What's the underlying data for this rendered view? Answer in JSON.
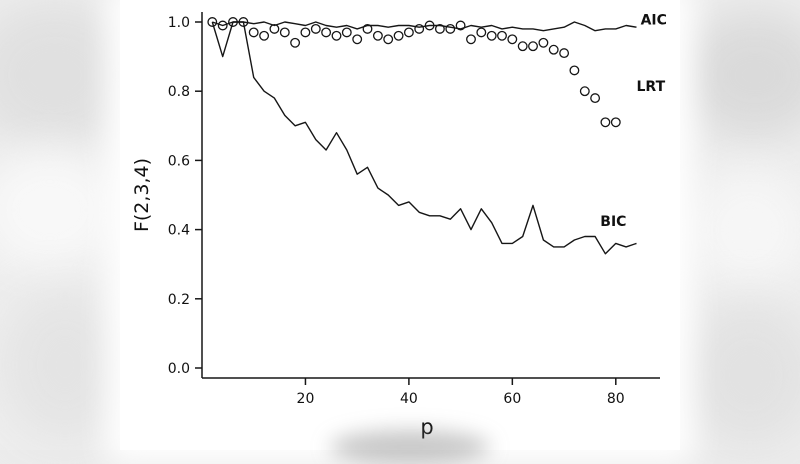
{
  "figure": {
    "background_color": "#ffffff",
    "line_color": "#161616"
  },
  "chart_data": {
    "type": "line",
    "title": "",
    "xlabel": "p",
    "ylabel": "F(2,3,4)",
    "xlim": [
      0,
      87
    ],
    "ylim": [
      0.0,
      1.0
    ],
    "grid": false,
    "legend_position": "inline-right-labels",
    "x_tick_values": [
      20,
      40,
      60,
      80
    ],
    "x_tick_labels": [
      "20",
      "40",
      "60",
      "80"
    ],
    "y_tick_values": [
      0.0,
      0.2,
      0.4,
      0.6,
      0.8,
      1.0
    ],
    "y_tick_labels": [
      "0.0",
      "0.2",
      "0.4",
      "0.6",
      "0.8",
      "1.0"
    ],
    "x": [
      2,
      4,
      6,
      8,
      10,
      12,
      14,
      16,
      18,
      20,
      22,
      24,
      26,
      28,
      30,
      32,
      34,
      36,
      38,
      40,
      42,
      44,
      46,
      48,
      50,
      52,
      54,
      56,
      58,
      60,
      62,
      64,
      66,
      68,
      70,
      72,
      74,
      76,
      78,
      80,
      82,
      84
    ],
    "series": [
      {
        "name": "AIC",
        "style": "line",
        "values": [
          1.0,
          0.99,
          1.0,
          1.0,
          0.995,
          1.0,
          0.99,
          1.0,
          0.995,
          0.99,
          1.0,
          0.99,
          0.985,
          0.99,
          0.98,
          0.99,
          0.99,
          0.985,
          0.99,
          0.99,
          0.985,
          0.99,
          0.99,
          0.985,
          0.98,
          0.99,
          0.985,
          0.99,
          0.98,
          0.985,
          0.98,
          0.98,
          0.975,
          0.98,
          0.985,
          1.0,
          0.99,
          0.975,
          0.98,
          0.98,
          0.99,
          0.985
        ],
        "label": {
          "text": "AIC",
          "x": 84.8,
          "y": 0.993
        }
      },
      {
        "name": "LRT",
        "style": "points",
        "values": [
          1.0,
          0.99,
          1.0,
          1.0,
          0.97,
          0.96,
          0.98,
          0.97,
          0.94,
          0.97,
          0.98,
          0.97,
          0.96,
          0.97,
          0.95,
          0.98,
          0.96,
          0.95,
          0.96,
          0.97,
          0.98,
          0.99,
          0.98,
          0.98,
          0.99,
          0.95,
          0.97,
          0.96,
          0.96,
          0.95,
          0.93,
          0.93,
          0.94,
          0.92,
          0.91,
          0.86,
          0.8,
          0.78,
          0.71,
          0.71,
          null,
          null
        ],
        "label": {
          "text": "LRT",
          "x": 84.0,
          "y": 0.8
        }
      },
      {
        "name": "BIC",
        "style": "line",
        "values": [
          1.0,
          0.9,
          1.0,
          1.0,
          0.84,
          0.8,
          0.78,
          0.73,
          0.7,
          0.71,
          0.66,
          0.63,
          0.68,
          0.63,
          0.56,
          0.58,
          0.52,
          0.5,
          0.47,
          0.48,
          0.45,
          0.44,
          0.44,
          0.43,
          0.46,
          0.4,
          0.46,
          0.42,
          0.36,
          0.36,
          0.38,
          0.47,
          0.37,
          0.35,
          0.35,
          0.37,
          0.38,
          0.38,
          0.33,
          0.36,
          0.35,
          0.36
        ],
        "label": {
          "text": "BIC",
          "x": 77.0,
          "y": 0.41
        }
      }
    ]
  }
}
